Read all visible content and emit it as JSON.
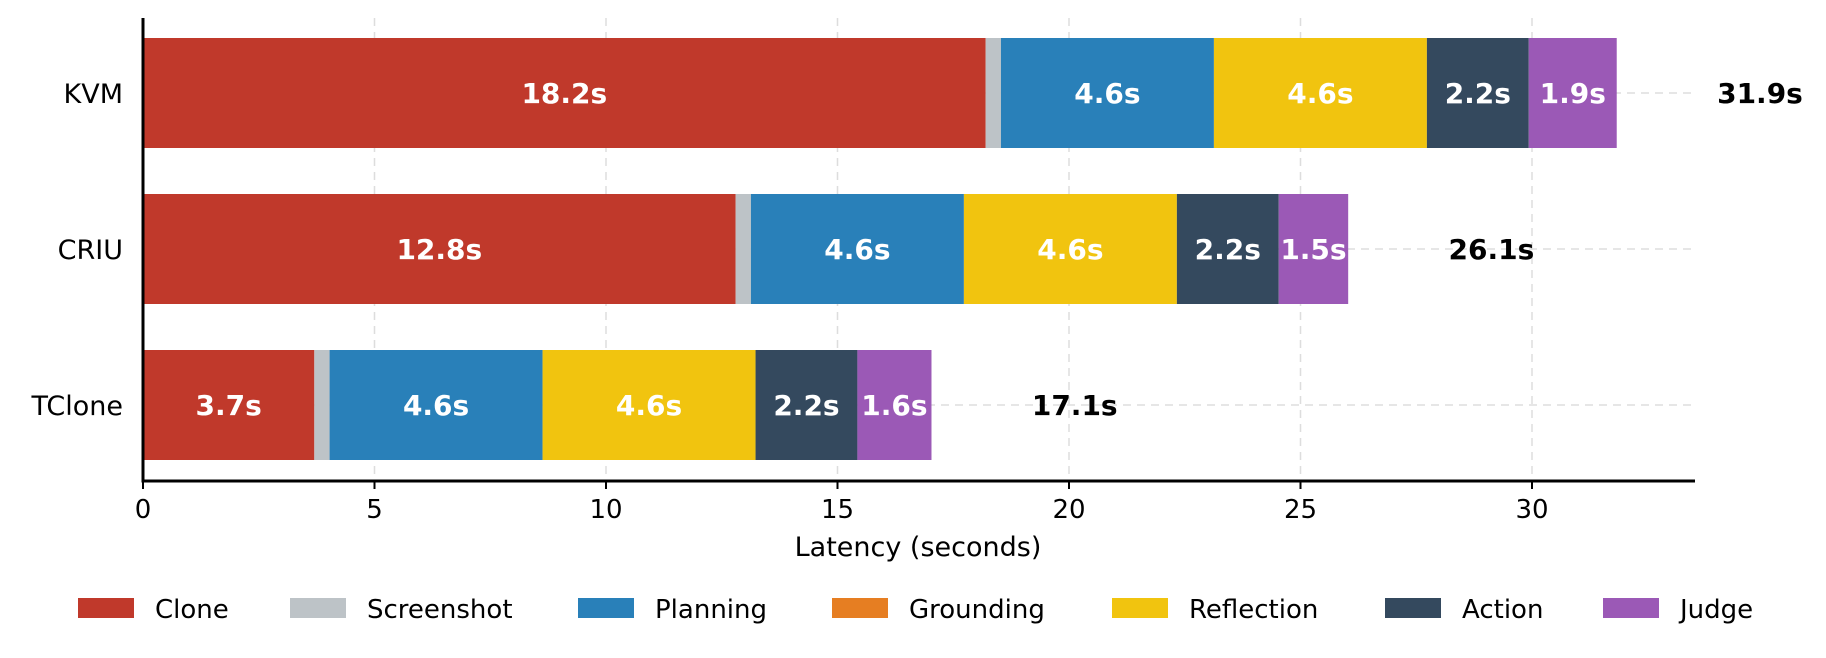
{
  "chart_data": {
    "type": "bar",
    "orientation": "horizontal",
    "stacked": true,
    "title": "",
    "xlabel": "Latency (seconds)",
    "ylabel": "",
    "xlim": [
      0,
      33.5
    ],
    "xticks": [
      0,
      5,
      10,
      15,
      20,
      25,
      30
    ],
    "grid": "dashed vertical and horizontal",
    "legend_position": "bottom",
    "categories": [
      "KVM",
      "CRIU",
      "TClone"
    ],
    "series": [
      {
        "name": "Clone",
        "color": "#c0392b",
        "values": [
          18.2,
          12.8,
          3.7
        ],
        "labels": [
          "18.2s",
          "12.8s",
          "3.7s"
        ]
      },
      {
        "name": "Screenshot",
        "color": "#bdc3c7",
        "values": [
          0.33,
          0.33,
          0.33
        ],
        "labels": [
          "",
          "",
          ""
        ]
      },
      {
        "name": "Planning",
        "color": "#2980b9",
        "values": [
          4.6,
          4.6,
          4.6
        ],
        "labels": [
          "4.6s",
          "4.6s",
          "4.6s"
        ]
      },
      {
        "name": "Grounding",
        "color": "#e67e22",
        "values": [
          0,
          0,
          0
        ],
        "labels": [
          "",
          "",
          ""
        ]
      },
      {
        "name": "Reflection",
        "color": "#f1c40f",
        "values": [
          4.6,
          4.6,
          4.6
        ],
        "labels": [
          "4.6s",
          "4.6s",
          "4.6s"
        ]
      },
      {
        "name": "Action",
        "color": "#34495e",
        "values": [
          2.2,
          2.2,
          2.2
        ],
        "labels": [
          "2.2s",
          "2.2s",
          "2.2s"
        ]
      },
      {
        "name": "Judge",
        "color": "#9b59b6",
        "values": [
          1.9,
          1.5,
          1.6
        ],
        "labels": [
          "1.9s",
          "1.5s",
          "1.6s"
        ]
      }
    ],
    "totals": [
      31.9,
      26.1,
      17.1
    ],
    "total_labels": [
      "31.9s",
      "26.1s",
      "17.1s"
    ]
  }
}
